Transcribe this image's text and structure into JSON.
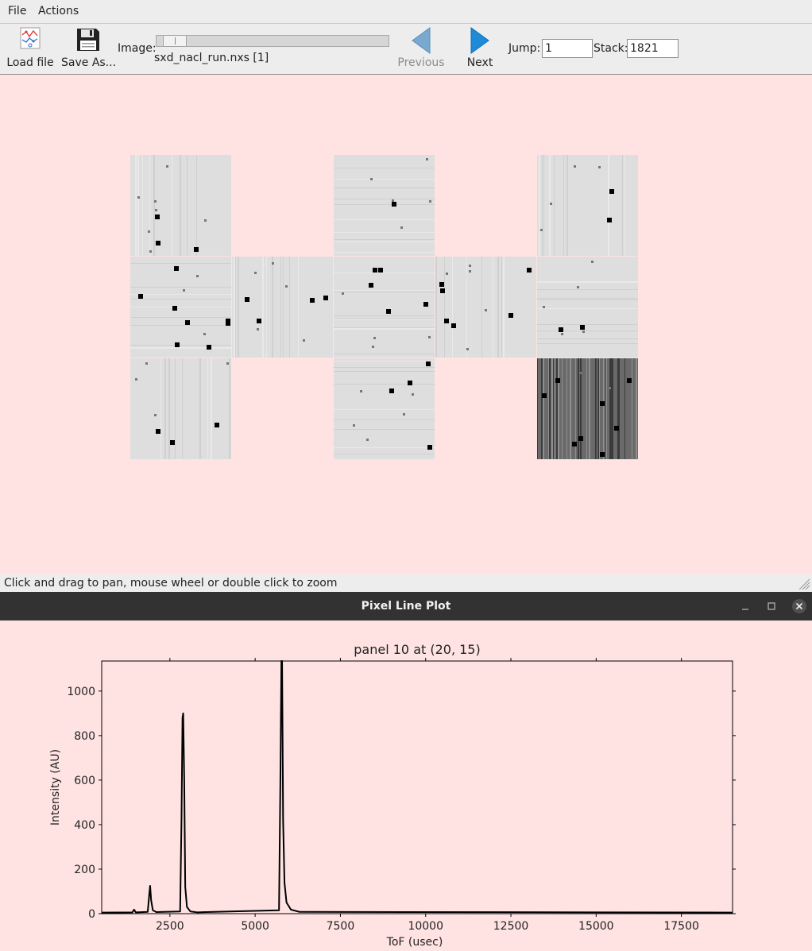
{
  "menubar": {
    "items": [
      "File",
      "Actions"
    ]
  },
  "toolbar": {
    "load_label": "Load file",
    "save_label": "Save As...",
    "image_label": "Image:",
    "image_file": "sxd_nacl_run.nxs [1]",
    "slider_fraction": 0.03,
    "previous_label": "Previous",
    "next_label": "Next",
    "jump_label": "Jump:",
    "jump_value": "1",
    "stack_label": "Stack:",
    "stack_value": "1821"
  },
  "status": {
    "text": "Click and drag to pan, mouse wheel or double click to zoom"
  },
  "plot_window": {
    "title": "Pixel Line Plot"
  },
  "colors": {
    "background": "#ffe3e3",
    "chrome": "#ededed",
    "titlebar": "#323232",
    "accent": "#1f8ad8"
  },
  "chart_data": {
    "type": "line",
    "title": "panel 10 at (20, 15)",
    "xlabel": "ToF (usec)",
    "ylabel": "Intensity (AU)",
    "xlim": [
      500,
      19000
    ],
    "ylim": [
      0,
      1135
    ],
    "xticks": [
      2500,
      5000,
      7500,
      10000,
      12500,
      15000,
      17500
    ],
    "xtick_labels": [
      "2500",
      "5000",
      "7500",
      "10000",
      "12500",
      "15000",
      "17500"
    ],
    "yticks": [
      0,
      200,
      400,
      600,
      800,
      1000
    ],
    "ytick_labels": [
      "0",
      "200",
      "400",
      "600",
      "800",
      "1000"
    ],
    "grid": false,
    "series": [
      {
        "color": "#000000",
        "x": [
          500,
          1400,
          1450,
          1500,
          1850,
          1900,
          1920,
          1950,
          2000,
          2100,
          2800,
          2840,
          2870,
          2890,
          2920,
          2950,
          3000,
          3100,
          3300,
          5700,
          5740,
          5770,
          5790,
          5820,
          5860,
          5920,
          6050,
          6300,
          19000
        ],
        "y": [
          5,
          6,
          18,
          6,
          8,
          95,
          125,
          60,
          15,
          7,
          10,
          420,
          880,
          900,
          600,
          120,
          30,
          10,
          6,
          15,
          600,
          1135,
          1135,
          420,
          140,
          50,
          18,
          8,
          5
        ]
      }
    ]
  }
}
